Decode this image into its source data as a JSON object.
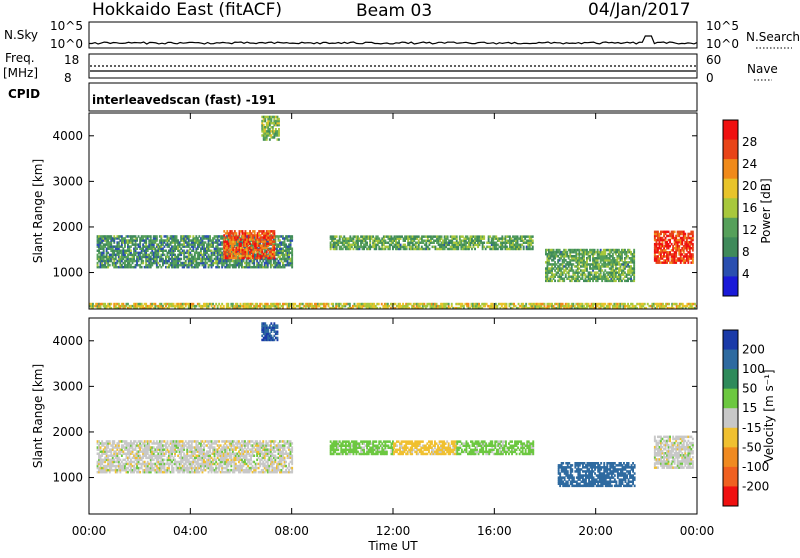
{
  "header": {
    "station": "Hokkaido East (fitACF)",
    "beam": "Beam 03",
    "date": "04/Jan/2017"
  },
  "status_strip": {
    "nsky_label": "N.Sky",
    "nsky_ticks": [
      "10^5",
      "10^0"
    ],
    "nsky_right_ticks": [
      "10^5",
      "10^0"
    ],
    "nsearch_label": "N.Search",
    "freq_label": "Freq.",
    "freq_unit": "[MHz]",
    "freq_ticks": [
      "18",
      "8"
    ],
    "nave_ticks": [
      "60",
      "0"
    ],
    "nave_label": "Nave",
    "cpid_label": "CPID",
    "cpid_value": "interleavedscan (fast) -191"
  },
  "colors": {
    "power_scale": [
      "#1a1ad8",
      "#2a4fb0",
      "#3f8a5a",
      "#56a05a",
      "#a8c83c",
      "#e8c42a",
      "#f08a1a",
      "#e84418",
      "#f01010"
    ],
    "velocity_scale": [
      "#1a3aa8",
      "#2e6aa0",
      "#2e8a5a",
      "#6cc840",
      "#c8c8c8",
      "#f0c030",
      "#f08a20",
      "#f06020",
      "#f01010"
    ]
  },
  "chart_data": [
    {
      "type": "heatmap",
      "panel": "power",
      "xlabel": "",
      "ylabel": "Slant Range [km]",
      "x_ticks": [
        "00:00",
        "04:00",
        "08:00",
        "12:00",
        "16:00",
        "20:00",
        "00:00"
      ],
      "xlim_hours": [
        0,
        24
      ],
      "ylim": [
        200,
        4500
      ],
      "y_ticks": [
        1000,
        2000,
        3000,
        4000
      ],
      "colorbar": {
        "label": "Power [dB]",
        "range": [
          0,
          32
        ],
        "ticks": [
          4,
          8,
          12,
          16,
          20,
          24,
          28
        ]
      },
      "features": [
        {
          "t": [
            0.3,
            8.0
          ],
          "range": [
            1100,
            1800
          ],
          "value": 10,
          "desc": "green band"
        },
        {
          "t": [
            5.3,
            7.3
          ],
          "range": [
            1300,
            1900
          ],
          "value": 26
        },
        {
          "t": [
            6.8,
            7.5
          ],
          "range": [
            3900,
            4400
          ],
          "value": 14
        },
        {
          "t": [
            9.5,
            17.5
          ],
          "range": [
            1500,
            1800
          ],
          "value": 12
        },
        {
          "t": [
            18.0,
            21.5
          ],
          "range": [
            800,
            1500
          ],
          "value": 12
        },
        {
          "t": [
            22.3,
            23.8
          ],
          "range": [
            1200,
            1900
          ],
          "value": 28
        },
        {
          "t": [
            0,
            24
          ],
          "range": [
            200,
            300
          ],
          "value": 18
        }
      ]
    },
    {
      "type": "heatmap",
      "panel": "velocity",
      "xlabel": "Time UT",
      "ylabel": "Slant Range [km]",
      "x_ticks": [
        "00:00",
        "04:00",
        "08:00",
        "12:00",
        "16:00",
        "20:00",
        "00:00"
      ],
      "xlim_hours": [
        0,
        24
      ],
      "ylim": [
        200,
        4500
      ],
      "y_ticks": [
        1000,
        2000,
        3000,
        4000
      ],
      "colorbar": {
        "label": "Velocity [m s⁻¹]",
        "ticks": [
          "200",
          "100",
          "50",
          "15",
          "-15",
          "-50",
          "-100",
          "-200"
        ]
      },
      "features": [
        {
          "t": [
            0.3,
            8.0
          ],
          "range": [
            1100,
            1800
          ],
          "value": 0
        },
        {
          "t": [
            6.8,
            7.4
          ],
          "range": [
            4000,
            4400
          ],
          "value": 200
        },
        {
          "t": [
            9.5,
            12.0
          ],
          "range": [
            1500,
            1800
          ],
          "value": 30
        },
        {
          "t": [
            12.0,
            14.5
          ],
          "range": [
            1500,
            1800
          ],
          "value": -30
        },
        {
          "t": [
            14.5,
            17.5
          ],
          "range": [
            1500,
            1800
          ],
          "value": 30
        },
        {
          "t": [
            18.5,
            21.5
          ],
          "range": [
            800,
            1300
          ],
          "value": 120
        },
        {
          "t": [
            22.3,
            23.8
          ],
          "range": [
            1200,
            1900
          ],
          "value": 0
        }
      ]
    }
  ]
}
